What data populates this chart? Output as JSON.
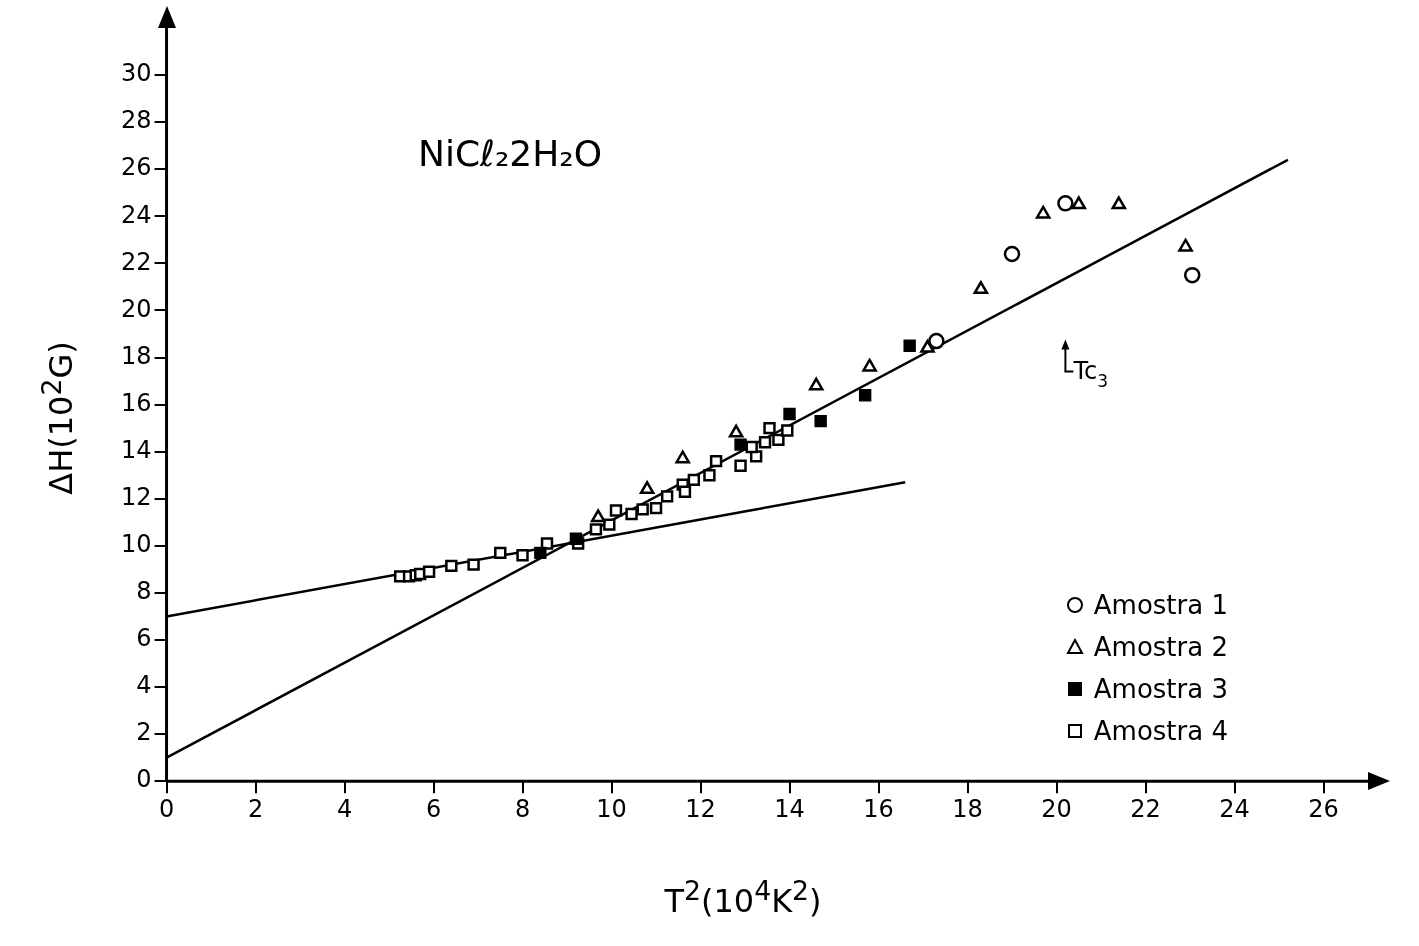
{
  "chart_data": {
    "type": "scatter",
    "title": "NiCℓ₂2H₂O",
    "xlabel": "T$^{2}$(10$^{4}$K$^{2}$)",
    "ylabel": "ΔH(10$^{2}$G)",
    "xlim": [
      0,
      27
    ],
    "ylim": [
      0,
      32
    ],
    "xticks": [
      0,
      2,
      4,
      6,
      8,
      10,
      12,
      14,
      16,
      18,
      20,
      22,
      24,
      26
    ],
    "yticks": [
      0,
      2,
      4,
      6,
      8,
      10,
      12,
      14,
      16,
      18,
      20,
      22,
      24,
      26,
      28,
      30
    ],
    "grid": false,
    "legend": "bottom right",
    "annotations": [
      {
        "text": "Tc$_{3}$",
        "x": 20.2,
        "y": 18.6
      }
    ],
    "series": [
      {
        "name": "Amostra 1",
        "color": "#ffffff",
        "marker": "circle",
        "x": [
          17.3,
          19.0,
          20.2,
          23.05
        ],
        "values": [
          18.7,
          22.4,
          24.55,
          21.5
        ]
      },
      {
        "name": "Amostra 2",
        "color": "#ffffff",
        "marker": "triangle",
        "x": [
          9.7,
          10.8,
          11.6,
          12.8,
          14.6,
          15.8,
          17.1,
          18.3,
          19.7,
          20.5,
          21.4,
          22.9
        ],
        "values": [
          11.2,
          12.4,
          13.7,
          14.8,
          16.8,
          17.6,
          18.4,
          20.9,
          24.1,
          24.5,
          24.5,
          22.7
        ]
      },
      {
        "name": "Amostra 3",
        "color": "#000000",
        "marker": "square",
        "x": [
          8.4,
          9.2,
          12.9,
          14.0,
          14.7,
          15.7,
          16.7
        ],
        "values": [
          9.7,
          10.3,
          14.3,
          15.6,
          15.3,
          16.4,
          18.5
        ]
      },
      {
        "name": "Amostra 4",
        "color": "#ffffff",
        "marker": "square",
        "x": [
          5.25,
          5.45,
          5.6,
          5.7,
          5.9,
          6.4,
          6.9,
          7.5,
          8.0,
          8.55,
          9.25,
          9.65,
          9.95,
          10.1,
          10.45,
          10.7,
          11.0,
          11.25,
          11.6,
          11.65,
          11.85,
          12.2,
          12.35,
          12.9,
          13.25,
          13.15,
          13.45,
          13.55,
          13.75,
          13.95
        ],
        "values": [
          8.7,
          8.7,
          8.75,
          8.8,
          8.9,
          9.15,
          9.2,
          9.7,
          9.6,
          10.1,
          10.1,
          10.7,
          10.9,
          11.5,
          11.35,
          11.55,
          11.6,
          12.1,
          12.6,
          12.3,
          12.8,
          13.0,
          13.6,
          13.4,
          13.8,
          14.2,
          14.4,
          15.0,
          14.5,
          14.9
        ]
      },
      {
        "type": "line",
        "color": "#000000",
        "marker": "none",
        "x": [
          0,
          16.6
        ],
        "values": [
          7.0,
          12.7
        ]
      },
      {
        "type": "line",
        "color": "#000000",
        "marker": "none",
        "x": [
          0,
          25.2
        ],
        "values": [
          1.0,
          26.4
        ]
      }
    ]
  }
}
